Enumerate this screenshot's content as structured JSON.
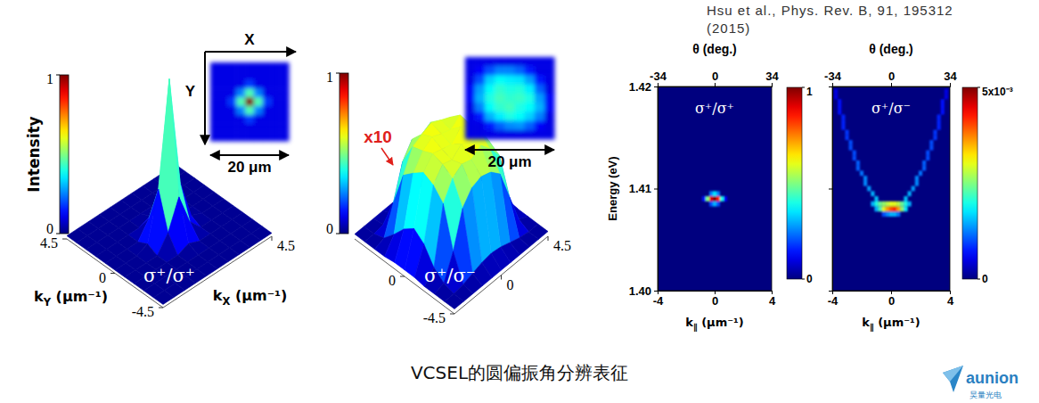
{
  "caption": "VCSEL的圆偏振角分辨表征",
  "citation": "Hsu et al., Phys. Rev. B, 91, 195312 (2015)",
  "logo": {
    "name": "aunion",
    "sub": "昊量光电"
  },
  "chart_data": [
    {
      "type": "surface",
      "label": "σ⁺/σ⁺",
      "xlabel": "kX (μm⁻¹)",
      "ylabel": "kY (μm⁻¹)",
      "zlabel": "Intensity",
      "xlim": [
        -4.5,
        4.5
      ],
      "ylim": [
        -4.5,
        4.5
      ],
      "xticks": [
        4.5
      ],
      "yticks": [
        -4.5,
        0,
        4.5
      ],
      "zlim": [
        0,
        1
      ],
      "zticks": [
        0,
        1
      ],
      "x": [
        -4.5,
        -3.6,
        -2.7,
        -1.8,
        -0.9,
        0,
        0.9,
        1.8,
        2.7,
        3.6,
        4.5
      ],
      "y": [
        -4.5,
        -3.6,
        -2.7,
        -1.8,
        -0.9,
        0,
        0.9,
        1.8,
        2.7,
        3.6,
        4.5
      ],
      "z": [
        [
          0.02,
          0.02,
          0.02,
          0.02,
          0.02,
          0.02,
          0.02,
          0.02,
          0.02,
          0.02,
          0.02
        ],
        [
          0.02,
          0.02,
          0.02,
          0.02,
          0.02,
          0.02,
          0.02,
          0.02,
          0.02,
          0.02,
          0.02
        ],
        [
          0.02,
          0.02,
          0.02,
          0.02,
          0.02,
          0.02,
          0.02,
          0.02,
          0.02,
          0.02,
          0.02
        ],
        [
          0.02,
          0.02,
          0.02,
          0.02,
          0.02,
          0.05,
          0.02,
          0.02,
          0.02,
          0.02,
          0.02
        ],
        [
          0.02,
          0.02,
          0.02,
          0.02,
          0.12,
          0.3,
          0.1,
          0.02,
          0.02,
          0.02,
          0.02
        ],
        [
          0.02,
          0.02,
          0.02,
          0.05,
          0.35,
          1,
          0.3,
          0.05,
          0.02,
          0.02,
          0.02
        ],
        [
          0.02,
          0.02,
          0.02,
          0.02,
          0.12,
          0.28,
          0.1,
          0.02,
          0.02,
          0.02,
          0.02
        ],
        [
          0.02,
          0.02,
          0.02,
          0.02,
          0.02,
          0.05,
          0.02,
          0.02,
          0.02,
          0.02,
          0.02
        ],
        [
          0.02,
          0.02,
          0.02,
          0.02,
          0.02,
          0.02,
          0.02,
          0.02,
          0.02,
          0.02,
          0.02
        ],
        [
          0.02,
          0.02,
          0.02,
          0.02,
          0.02,
          0.02,
          0.02,
          0.02,
          0.02,
          0.02,
          0.02
        ],
        [
          0.02,
          0.02,
          0.02,
          0.02,
          0.02,
          0.02,
          0.02,
          0.02,
          0.02,
          0.02,
          0.02
        ]
      ],
      "inset": {
        "x_label": "X",
        "y_label": "Y",
        "scale_bar": "20 μm",
        "zlim": [
          0,
          1
        ],
        "z": [
          [
            0.1,
            0.1,
            0.1,
            0.1,
            0.1,
            0.1,
            0.1,
            0.1,
            0.1
          ],
          [
            0.1,
            0.1,
            0.1,
            0.1,
            0.1,
            0.1,
            0.1,
            0.1,
            0.1
          ],
          [
            0.1,
            0.1,
            0.1,
            0.1,
            0.18,
            0.1,
            0.1,
            0.1,
            0.1
          ],
          [
            0.1,
            0.1,
            0.1,
            0.25,
            0.45,
            0.25,
            0.1,
            0.1,
            0.1
          ],
          [
            0.1,
            0.1,
            0.18,
            0.45,
            1,
            0.45,
            0.18,
            0.1,
            0.1
          ],
          [
            0.1,
            0.1,
            0.1,
            0.25,
            0.45,
            0.25,
            0.1,
            0.1,
            0.1
          ],
          [
            0.1,
            0.1,
            0.1,
            0.1,
            0.18,
            0.1,
            0.1,
            0.1,
            0.1
          ],
          [
            0.1,
            0.1,
            0.1,
            0.1,
            0.1,
            0.1,
            0.1,
            0.1,
            0.1
          ],
          [
            0.1,
            0.1,
            0.1,
            0.1,
            0.1,
            0.1,
            0.1,
            0.1,
            0.1
          ]
        ]
      }
    },
    {
      "type": "surface",
      "label": "σ⁺/σ⁻",
      "annotation": "x10",
      "xlim": [
        -4.5,
        4.5
      ],
      "ylim": [
        -4.5,
        4.5
      ],
      "xticks": [
        0,
        4.5
      ],
      "yticks": [
        -4.5,
        0
      ],
      "zlim": [
        0,
        1
      ],
      "zticks": [
        0,
        1
      ],
      "x": [
        -4.5,
        -3.6,
        -2.7,
        -1.8,
        -0.9,
        0,
        0.9,
        1.8,
        2.7,
        3.6,
        4.5
      ],
      "y": [
        -4.5,
        -3.6,
        -2.7,
        -1.8,
        -0.9,
        0,
        0.9,
        1.8,
        2.7,
        3.6,
        4.5
      ],
      "z": [
        [
          0.03,
          0.03,
          0.03,
          0.03,
          0.03,
          0.03,
          0.03,
          0.03,
          0.03,
          0.03,
          0.03
        ],
        [
          0.03,
          0.03,
          0.04,
          0.06,
          0.08,
          0.09,
          0.08,
          0.06,
          0.04,
          0.03,
          0.03
        ],
        [
          0.03,
          0.05,
          0.2,
          0.42,
          0.5,
          0.52,
          0.5,
          0.44,
          0.25,
          0.06,
          0.03
        ],
        [
          0.03,
          0.1,
          0.45,
          0.56,
          0.6,
          0.58,
          0.62,
          0.55,
          0.46,
          0.12,
          0.03
        ],
        [
          0.04,
          0.2,
          0.52,
          0.6,
          0.58,
          0.63,
          0.59,
          0.61,
          0.5,
          0.18,
          0.04
        ],
        [
          0.04,
          0.25,
          0.55,
          0.62,
          0.6,
          0.58,
          0.64,
          0.6,
          0.54,
          0.22,
          0.04
        ],
        [
          0.04,
          0.2,
          0.5,
          0.59,
          0.63,
          0.6,
          0.58,
          0.62,
          0.52,
          0.2,
          0.04
        ],
        [
          0.03,
          0.12,
          0.44,
          0.57,
          0.6,
          0.62,
          0.59,
          0.56,
          0.47,
          0.1,
          0.03
        ],
        [
          0.03,
          0.05,
          0.22,
          0.43,
          0.52,
          0.5,
          0.53,
          0.45,
          0.2,
          0.05,
          0.03
        ],
        [
          0.03,
          0.03,
          0.04,
          0.06,
          0.08,
          0.09,
          0.08,
          0.06,
          0.04,
          0.03,
          0.03
        ],
        [
          0.03,
          0.03,
          0.03,
          0.03,
          0.03,
          0.03,
          0.03,
          0.03,
          0.03,
          0.03,
          0.03
        ]
      ],
      "inset": {
        "scale_bar": "20 μm",
        "zlim": [
          0,
          1
        ],
        "z": [
          [
            0.1,
            0.1,
            0.1,
            0.1,
            0.1,
            0.1,
            0.1,
            0.1,
            0.1
          ],
          [
            0.1,
            0.12,
            0.2,
            0.25,
            0.25,
            0.22,
            0.15,
            0.1,
            0.1
          ],
          [
            0.1,
            0.2,
            0.33,
            0.38,
            0.36,
            0.35,
            0.28,
            0.15,
            0.1
          ],
          [
            0.12,
            0.28,
            0.38,
            0.42,
            0.4,
            0.41,
            0.36,
            0.22,
            0.1
          ],
          [
            0.12,
            0.3,
            0.4,
            0.44,
            0.42,
            0.43,
            0.4,
            0.28,
            0.12
          ],
          [
            0.1,
            0.25,
            0.38,
            0.42,
            0.44,
            0.4,
            0.38,
            0.3,
            0.12
          ],
          [
            0.1,
            0.15,
            0.3,
            0.36,
            0.4,
            0.38,
            0.33,
            0.25,
            0.1
          ],
          [
            0.1,
            0.1,
            0.15,
            0.22,
            0.26,
            0.27,
            0.22,
            0.12,
            0.1
          ],
          [
            0.1,
            0.1,
            0.1,
            0.1,
            0.1,
            0.1,
            0.1,
            0.1,
            0.1
          ]
        ]
      }
    },
    {
      "type": "heatmap",
      "label": "σ⁺/σ⁺",
      "xlabel": "k∥ (μm⁻¹)",
      "ylabel": "Energy (eV)",
      "x2label": "θ (deg.)",
      "xlim": [
        -4,
        4
      ],
      "xticks": [
        -4,
        0,
        4
      ],
      "x2lim": [
        -34,
        34
      ],
      "x2ticks": [
        -34,
        0,
        34
      ],
      "ylim": [
        1.4,
        1.42
      ],
      "yticks": [
        {
          "value": 1.4,
          "label": "1.40"
        },
        1.41,
        1.42
      ],
      "zlim": [
        0,
        1
      ],
      "zticks": [
        0,
        1
      ],
      "bin_width": [
        0.25,
        0.0005
      ],
      "cells": [
        [
          -0.75,
          1.409,
          0.15
        ],
        [
          -0.5,
          1.409,
          0.5
        ],
        [
          -0.25,
          1.409,
          0.9
        ],
        [
          0,
          1.409,
          1
        ],
        [
          0.25,
          1.409,
          0.85
        ],
        [
          0.5,
          1.409,
          0.4
        ],
        [
          0.75,
          1.409,
          0.12
        ],
        [
          -0.25,
          1.4095,
          0.25
        ],
        [
          0,
          1.4095,
          0.35
        ],
        [
          0.25,
          1.4095,
          0.25
        ],
        [
          -0.25,
          1.4085,
          0.2
        ],
        [
          0,
          1.4085,
          0.3
        ],
        [
          0.25,
          1.4085,
          0.2
        ]
      ]
    },
    {
      "type": "heatmap",
      "label": "σ⁺/σ⁻",
      "xlabel": "k∥ (μm⁻¹)",
      "x2label": "θ (deg.)",
      "tick_labels": "x",
      "xlim": [
        -4,
        4
      ],
      "xticks": [
        -4,
        0,
        4
      ],
      "x2lim": [
        -34,
        34
      ],
      "x2ticks": [
        -34,
        0,
        34
      ],
      "ylim": [
        1.4,
        1.42
      ],
      "yticks": [
        1.4,
        1.41,
        1.42
      ],
      "zlim": [
        0,
        0.005
      ],
      "zticks": [
        0,
        {
          "value": 0.005,
          "label": "5x10⁻³"
        }
      ],
      "bin_width": [
        0.25,
        0.0005
      ],
      "cells": [
        [
          -0.5,
          1.4075,
          0.001
        ],
        [
          -0.25,
          1.4075,
          0.0013
        ],
        [
          0,
          1.4075,
          0.0015
        ],
        [
          0.25,
          1.4075,
          0.0015
        ],
        [
          0.5,
          1.4075,
          0.0012
        ],
        [
          -1,
          1.408,
          0.0015
        ],
        [
          -0.75,
          1.408,
          0.0022
        ],
        [
          -0.5,
          1.408,
          0.003
        ],
        [
          -0.25,
          1.408,
          0.0036
        ],
        [
          0,
          1.408,
          0.004
        ],
        [
          0.25,
          1.408,
          0.0042
        ],
        [
          0.5,
          1.408,
          0.0036
        ],
        [
          0.75,
          1.408,
          0.0026
        ],
        [
          1,
          1.408,
          0.0018
        ],
        [
          -1.25,
          1.4085,
          0.0015
        ],
        [
          -1,
          1.4085,
          0.002
        ],
        [
          -0.75,
          1.4085,
          0.0024
        ],
        [
          -0.5,
          1.4085,
          0.0026
        ],
        [
          -0.25,
          1.4085,
          0.0028
        ],
        [
          0,
          1.4085,
          0.003
        ],
        [
          0.25,
          1.4085,
          0.003
        ],
        [
          0.5,
          1.4085,
          0.0028
        ],
        [
          0.75,
          1.4085,
          0.0024
        ],
        [
          1,
          1.4085,
          0.002
        ],
        [
          1.25,
          1.4085,
          0.0015
        ],
        [
          -1,
          1.409,
          0.0016
        ],
        [
          1,
          1.409,
          0.0016
        ],
        [
          -1.25,
          1.4095,
          0.0015
        ],
        [
          1.25,
          1.4095,
          0.0015
        ],
        [
          -1.5,
          1.41,
          0.0014
        ],
        [
          1.5,
          1.41,
          0.0014
        ],
        [
          -1.75,
          1.4105,
          0.0013
        ],
        [
          1.75,
          1.4105,
          0.0013
        ],
        [
          -1.75,
          1.411,
          0.0013
        ],
        [
          1.75,
          1.411,
          0.0013
        ],
        [
          -2,
          1.4115,
          0.0012
        ],
        [
          2,
          1.4115,
          0.0012
        ],
        [
          -2.25,
          1.412,
          0.0011
        ],
        [
          2.25,
          1.412,
          0.0011
        ],
        [
          -2.25,
          1.4125,
          0.0011
        ],
        [
          2.25,
          1.4125,
          0.0011
        ],
        [
          -2.5,
          1.413,
          0.001
        ],
        [
          2.5,
          1.413,
          0.001
        ],
        [
          -2.5,
          1.4135,
          0.001
        ],
        [
          2.5,
          1.4135,
          0.001
        ],
        [
          -2.75,
          1.414,
          0.001
        ],
        [
          2.75,
          1.414,
          0.001
        ],
        [
          -2.75,
          1.4145,
          0.001
        ],
        [
          2.75,
          1.4145,
          0.001
        ],
        [
          -3,
          1.415,
          0.0009
        ],
        [
          3,
          1.415,
          0.0009
        ],
        [
          -3,
          1.4155,
          0.0009
        ],
        [
          3,
          1.4155,
          0.0009
        ],
        [
          -3.25,
          1.416,
          0.0008
        ],
        [
          3.25,
          1.416,
          0.0008
        ],
        [
          -3.25,
          1.4165,
          0.0008
        ],
        [
          3.25,
          1.4165,
          0.0008
        ],
        [
          -3.25,
          1.417,
          0.0008
        ],
        [
          3.25,
          1.417,
          0.0008
        ],
        [
          -3.5,
          1.4175,
          0.0007
        ],
        [
          3.5,
          1.4175,
          0.0007
        ],
        [
          -3.5,
          1.418,
          0.0007
        ],
        [
          3.5,
          1.418,
          0.0007
        ],
        [
          -3.5,
          1.4185,
          0.0007
        ],
        [
          3.5,
          1.4185,
          0.0007
        ],
        [
          -3.75,
          1.419,
          0.0005
        ],
        [
          3.75,
          1.419,
          0.0005
        ],
        [
          -3.75,
          1.4195,
          0.0005
        ],
        [
          3.75,
          1.4195,
          0.0005
        ]
      ]
    }
  ]
}
